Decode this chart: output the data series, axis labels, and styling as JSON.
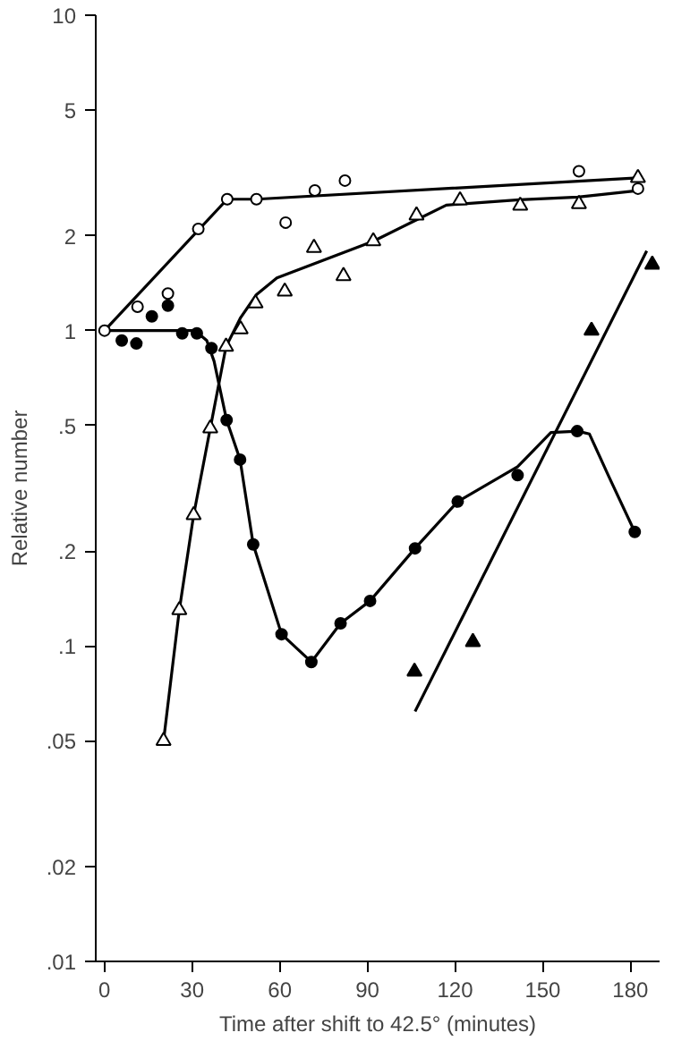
{
  "chart_data": {
    "type": "scatter",
    "xlabel": "Time after shift to 42.5° (minutes)",
    "ylabel": "Relative number",
    "log": "y",
    "grid": false,
    "xlim": [
      -3,
      190
    ],
    "xticks": [
      0,
      30,
      60,
      90,
      120,
      150,
      180
    ],
    "ylim": [
      0.01,
      10
    ],
    "yticks": [
      10,
      5,
      2,
      1,
      {
        "value": 0.5,
        "label": ".5"
      },
      {
        "value": 0.2,
        "label": ".2"
      },
      {
        "value": 0.1,
        "label": ".1"
      },
      {
        "value": 0.05,
        "label": ".05"
      },
      {
        "value": 0.02,
        "label": ".02"
      },
      {
        "value": 0.01,
        "label": ".01"
      }
    ],
    "series": [
      {
        "marker": "circle",
        "color": "#ffffff",
        "x": [
          0,
          11.3,
          21.7,
          32.1,
          42,
          52,
          62,
          72,
          82.3,
          162.4,
          182.6
        ],
        "values": [
          1.0,
          1.19,
          1.31,
          2.1,
          2.61,
          2.61,
          2.2,
          2.78,
          2.99,
          3.2,
          2.82
        ]
      },
      {
        "marker": "triangle",
        "color": "#ffffff",
        "x": [
          20.2,
          25.6,
          30.5,
          36.2,
          41.6,
          46.6,
          51.7,
          61.7,
          71.7,
          81.8,
          92,
          106.8,
          121.7,
          142.3,
          162.4,
          182.6
        ],
        "values": [
          0.05,
          0.13,
          0.26,
          0.49,
          0.89,
          1.01,
          1.22,
          1.33,
          1.83,
          1.49,
          1.92,
          2.32,
          2.59,
          2.49,
          2.52,
          3.05
        ]
      },
      {
        "marker": "circle",
        "color": "#000000",
        "x": [
          5.9,
          10.9,
          16.2,
          21.7,
          26.6,
          31.6,
          36.6,
          41.8,
          46.4,
          50.9,
          60.6,
          70.8,
          80.8,
          90.9,
          106.3,
          120.9,
          141.4,
          161.8,
          181.5
        ],
        "values": [
          0.93,
          0.91,
          1.11,
          1.2,
          0.98,
          0.98,
          0.88,
          0.52,
          0.39,
          0.21,
          0.109,
          0.089,
          0.118,
          0.139,
          0.204,
          0.287,
          0.348,
          0.48,
          0.23
        ]
      },
      {
        "marker": "triangle",
        "color": "#000000",
        "x": [
          106.1,
          126.1,
          166.7,
          187.5
        ],
        "values": [
          0.083,
          0.103,
          1.0,
          1.62
        ]
      },
      {
        "type": "line",
        "marker": "none",
        "color": "#000000",
        "x": [
          0,
          42,
          52,
          182.6
        ],
        "values": [
          1.0,
          2.61,
          2.61,
          3.05
        ]
      },
      {
        "type": "line",
        "marker": "none",
        "color": "#000000",
        "x": [
          20.2,
          25.6,
          30.5,
          36.2,
          41.6,
          46.6,
          52,
          59,
          92,
          107,
          117,
          142,
          162,
          182.6
        ],
        "values": [
          0.05,
          0.13,
          0.26,
          0.49,
          0.89,
          1.1,
          1.3,
          1.47,
          1.92,
          2.25,
          2.5,
          2.6,
          2.65,
          2.78
        ]
      },
      {
        "type": "line",
        "marker": "none",
        "color": "#000000",
        "x": [
          0,
          31,
          35,
          37.5,
          41.8,
          46.4,
          50.9,
          60.6,
          70.8,
          80.8,
          90.9,
          106.3,
          120.9,
          141.4,
          152.8,
          162,
          166,
          172.6,
          181.5
        ],
        "values": [
          1.0,
          1.0,
          0.93,
          0.8,
          0.52,
          0.39,
          0.21,
          0.109,
          0.089,
          0.118,
          0.139,
          0.204,
          0.287,
          0.37,
          0.475,
          0.48,
          0.47,
          0.345,
          0.23
        ]
      },
      {
        "type": "line",
        "marker": "none",
        "color": "#000000",
        "x": [
          106.3,
          185.6
        ],
        "values": [
          0.062,
          1.79
        ]
      }
    ]
  }
}
